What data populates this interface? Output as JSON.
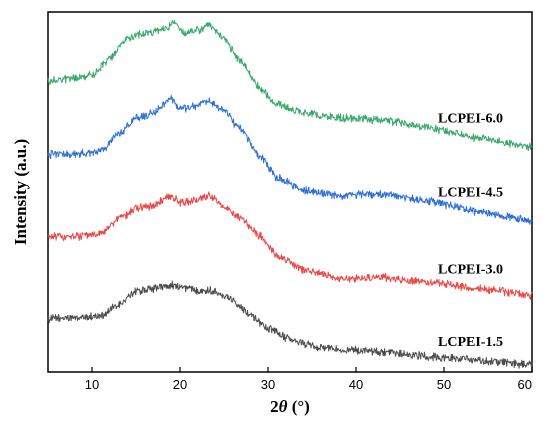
{
  "chart_data": {
    "type": "line",
    "title": "",
    "xlabel_prefix": "2",
    "xlabel_symbol": "θ",
    "xlabel_unit": " (°)",
    "ylabel": "Intensity (a.u.)",
    "xlim": [
      5,
      60
    ],
    "x_ticks": [
      10,
      20,
      30,
      40,
      50,
      60
    ],
    "y_ticks_shown": false,
    "grid": false,
    "legend": "inline labels at right of each curve",
    "series": [
      {
        "name": "LCPEI-1.5",
        "color": "#4d4d4d",
        "label": "LCPEI-1.5",
        "points": [
          [
            5,
            0.148
          ],
          [
            8,
            0.15
          ],
          [
            11,
            0.156
          ],
          [
            13,
            0.185
          ],
          [
            15,
            0.225
          ],
          [
            17,
            0.232
          ],
          [
            19,
            0.242
          ],
          [
            20,
            0.236
          ],
          [
            22,
            0.228
          ],
          [
            24,
            0.225
          ],
          [
            26,
            0.2
          ],
          [
            28,
            0.16
          ],
          [
            30,
            0.12
          ],
          [
            33,
            0.085
          ],
          [
            36,
            0.068
          ],
          [
            40,
            0.06
          ],
          [
            45,
            0.05
          ],
          [
            50,
            0.04
          ],
          [
            55,
            0.03
          ],
          [
            60,
            0.02
          ]
        ]
      },
      {
        "name": "LCPEI-3.0",
        "color": "#e84a4a",
        "label": "LCPEI-3.0",
        "points": [
          [
            5,
            0.375
          ],
          [
            8,
            0.375
          ],
          [
            11,
            0.385
          ],
          [
            13,
            0.425
          ],
          [
            15,
            0.455
          ],
          [
            17,
            0.462
          ],
          [
            19,
            0.49
          ],
          [
            20,
            0.47
          ],
          [
            22,
            0.478
          ],
          [
            23.3,
            0.49
          ],
          [
            25,
            0.46
          ],
          [
            27,
            0.425
          ],
          [
            29,
            0.38
          ],
          [
            31,
            0.325
          ],
          [
            34,
            0.285
          ],
          [
            38,
            0.26
          ],
          [
            43,
            0.262
          ],
          [
            48,
            0.25
          ],
          [
            54,
            0.232
          ],
          [
            60,
            0.212
          ]
        ]
      },
      {
        "name": "LCPEI-4.5",
        "color": "#2f6fd6",
        "label": "LCPEI-4.5",
        "points": [
          [
            5,
            0.605
          ],
          [
            8,
            0.605
          ],
          [
            11,
            0.615
          ],
          [
            13,
            0.66
          ],
          [
            15,
            0.705
          ],
          [
            17,
            0.72
          ],
          [
            19,
            0.76
          ],
          [
            20,
            0.73
          ],
          [
            22,
            0.74
          ],
          [
            23.3,
            0.755
          ],
          [
            25,
            0.725
          ],
          [
            27,
            0.67
          ],
          [
            29,
            0.6
          ],
          [
            31,
            0.54
          ],
          [
            34,
            0.505
          ],
          [
            38,
            0.49
          ],
          [
            43,
            0.495
          ],
          [
            48,
            0.475
          ],
          [
            54,
            0.445
          ],
          [
            60,
            0.42
          ]
        ]
      },
      {
        "name": "LCPEI-6.0",
        "color": "#3aa86a",
        "label": "LCPEI-6.0",
        "points": [
          [
            5,
            0.81
          ],
          [
            8,
            0.815
          ],
          [
            10,
            0.825
          ],
          [
            12,
            0.87
          ],
          [
            14,
            0.925
          ],
          [
            16,
            0.94
          ],
          [
            18,
            0.95
          ],
          [
            19.3,
            0.97
          ],
          [
            20.5,
            0.94
          ],
          [
            22,
            0.95
          ],
          [
            23.3,
            0.965
          ],
          [
            25,
            0.925
          ],
          [
            27,
            0.86
          ],
          [
            29,
            0.79
          ],
          [
            31,
            0.745
          ],
          [
            34,
            0.72
          ],
          [
            38,
            0.705
          ],
          [
            43,
            0.7
          ],
          [
            48,
            0.68
          ],
          [
            54,
            0.65
          ],
          [
            60,
            0.625
          ]
        ]
      }
    ]
  }
}
